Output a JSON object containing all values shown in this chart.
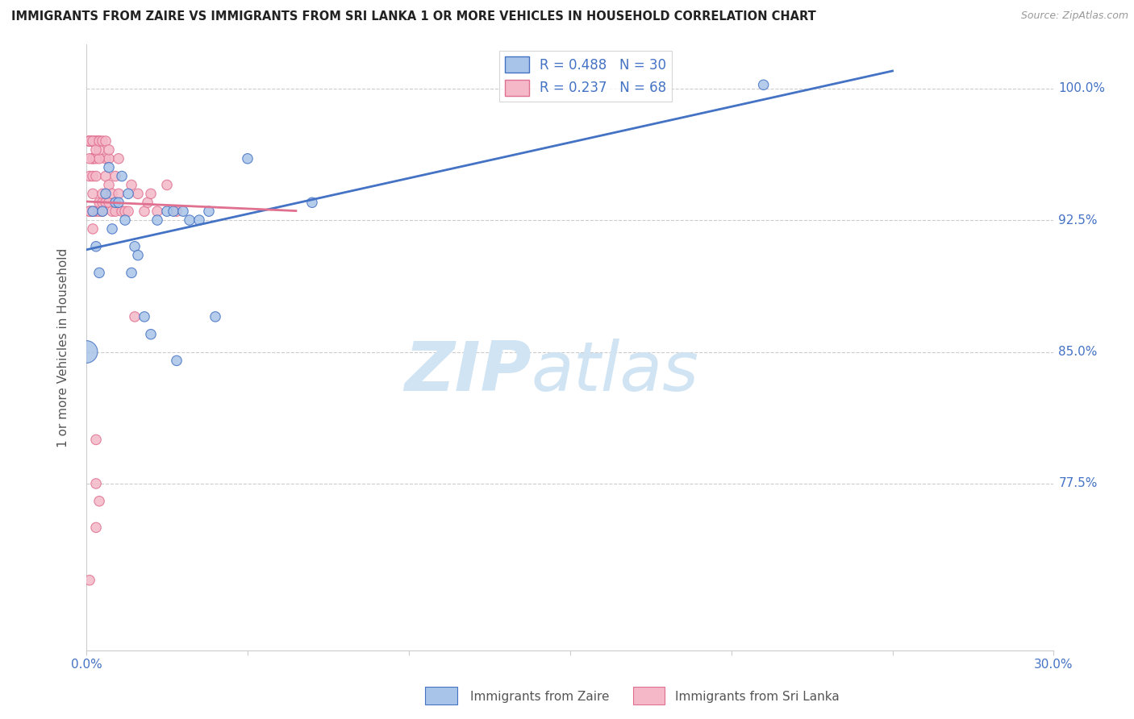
{
  "title": "IMMIGRANTS FROM ZAIRE VS IMMIGRANTS FROM SRI LANKA 1 OR MORE VEHICLES IN HOUSEHOLD CORRELATION CHART",
  "source": "Source: ZipAtlas.com",
  "ylabel_label": "1 or more Vehicles in Household",
  "legend_zaire_R": "R = 0.488",
  "legend_zaire_N": "N = 30",
  "legend_srilanka_R": "R = 0.237",
  "legend_srilanka_N": "N = 68",
  "color_zaire_fill": "#a8c4e8",
  "color_srilanka_fill": "#f4b8c8",
  "color_zaire_edge": "#4472c4",
  "color_srilanka_edge": "#e07090",
  "color_zaire_line": "#4472c4",
  "color_srilanka_line": "#e07090",
  "color_tick_labels": "#4472c4",
  "watermark_zip": "ZIP",
  "watermark_atlas": "atlas",
  "watermark_color": "#d0e4f4",
  "background": "#ffffff",
  "xlim": [
    0.0,
    0.3
  ],
  "ylim": [
    0.68,
    1.025
  ],
  "ytick_positions": [
    0.775,
    0.85,
    0.925,
    1.0
  ],
  "ytick_labels": [
    "77.5%",
    "85.0%",
    "92.5%",
    "100.0%"
  ],
  "xtick_positions": [
    0.0,
    0.05,
    0.1,
    0.15,
    0.2,
    0.25,
    0.3
  ],
  "xtick_labels": [
    "0.0%",
    "",
    "",
    "",
    "",
    "",
    "30.0%"
  ],
  "zaire_x": [
    0.0,
    0.002,
    0.003,
    0.004,
    0.005,
    0.006,
    0.007,
    0.008,
    0.009,
    0.01,
    0.011,
    0.012,
    0.013,
    0.014,
    0.015,
    0.016,
    0.018,
    0.02,
    0.022,
    0.025,
    0.027,
    0.028,
    0.03,
    0.032,
    0.035,
    0.038,
    0.04,
    0.05,
    0.07,
    0.21
  ],
  "zaire_y": [
    0.85,
    0.93,
    0.91,
    0.895,
    0.93,
    0.94,
    0.955,
    0.92,
    0.935,
    0.935,
    0.95,
    0.925,
    0.94,
    0.895,
    0.91,
    0.905,
    0.87,
    0.86,
    0.925,
    0.93,
    0.93,
    0.845,
    0.93,
    0.925,
    0.925,
    0.93,
    0.87,
    0.96,
    0.935,
    1.002
  ],
  "zaire_sizes": [
    400,
    80,
    80,
    80,
    80,
    80,
    80,
    80,
    80,
    80,
    80,
    80,
    80,
    80,
    80,
    80,
    80,
    80,
    80,
    80,
    80,
    80,
    80,
    80,
    80,
    80,
    80,
    80,
    80,
    80
  ],
  "srilanka_x": [
    0.001,
    0.001,
    0.001,
    0.002,
    0.002,
    0.002,
    0.002,
    0.003,
    0.003,
    0.003,
    0.003,
    0.003,
    0.004,
    0.004,
    0.004,
    0.004,
    0.005,
    0.005,
    0.005,
    0.006,
    0.006,
    0.006,
    0.007,
    0.007,
    0.007,
    0.008,
    0.008,
    0.009,
    0.009,
    0.01,
    0.01,
    0.011,
    0.012,
    0.013,
    0.014,
    0.015,
    0.016,
    0.018,
    0.019,
    0.02,
    0.022,
    0.025,
    0.028,
    0.001,
    0.002,
    0.003,
    0.001,
    0.002,
    0.001,
    0.001,
    0.002,
    0.003,
    0.004,
    0.004,
    0.001,
    0.001,
    0.002,
    0.003,
    0.004,
    0.001,
    0.001,
    0.001,
    0.002,
    0.003,
    0.004,
    0.005,
    0.006,
    0.007
  ],
  "srilanka_y": [
    0.93,
    0.95,
    0.97,
    0.93,
    0.94,
    0.95,
    0.96,
    0.75,
    0.775,
    0.8,
    0.93,
    0.95,
    0.765,
    0.93,
    0.935,
    0.97,
    0.93,
    0.935,
    0.94,
    0.935,
    0.95,
    0.96,
    0.935,
    0.945,
    0.96,
    0.93,
    0.94,
    0.93,
    0.95,
    0.94,
    0.96,
    0.93,
    0.93,
    0.93,
    0.945,
    0.87,
    0.94,
    0.93,
    0.935,
    0.94,
    0.93,
    0.945,
    0.93,
    0.72,
    0.92,
    0.97,
    0.97,
    0.96,
    0.93,
    0.97,
    0.97,
    0.96,
    0.97,
    0.96,
    0.96,
    0.97,
    0.97,
    0.97,
    0.965,
    0.97,
    0.97,
    0.97,
    0.97,
    0.965,
    0.97,
    0.97,
    0.97,
    0.965
  ],
  "srilanka_sizes": [
    80,
    80,
    80,
    80,
    80,
    80,
    80,
    80,
    80,
    80,
    80,
    80,
    80,
    80,
    80,
    80,
    80,
    80,
    80,
    80,
    80,
    80,
    80,
    80,
    80,
    80,
    80,
    80,
    80,
    80,
    80,
    80,
    80,
    80,
    80,
    80,
    80,
    80,
    80,
    80,
    80,
    80,
    80,
    80,
    80,
    80,
    80,
    80,
    80,
    80,
    80,
    80,
    80,
    80,
    80,
    80,
    80,
    80,
    80,
    80,
    80,
    80,
    80,
    80,
    80,
    80,
    80,
    80
  ],
  "zaire_line_x": [
    0.0,
    0.25
  ],
  "srilanka_line_x": [
    0.0,
    0.065
  ]
}
